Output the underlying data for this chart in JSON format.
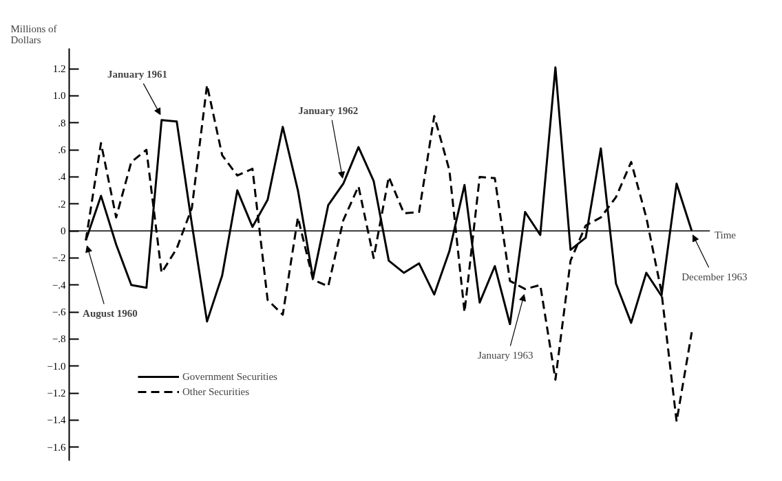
{
  "chart_data": {
    "type": "line",
    "ylabel": "Millions of Dollars",
    "xlabel": "Time",
    "categories": [
      null,
      null,
      null,
      null,
      null,
      null,
      null,
      null,
      null,
      null,
      null,
      null,
      null,
      null,
      null,
      null,
      null,
      null,
      null,
      null,
      null,
      null,
      null,
      null,
      null,
      null,
      null,
      null,
      null,
      null,
      null,
      null,
      null,
      null,
      null,
      null,
      null,
      null,
      null,
      null,
      null
    ],
    "series": [
      {
        "name": "Government Securities",
        "color": "#000000",
        "line_style": "solid",
        "values": [
          -0.07,
          0.26,
          -0.1,
          -0.4,
          -0.42,
          0.82,
          0.81,
          0.05,
          -0.67,
          -0.33,
          0.3,
          0.03,
          0.23,
          0.77,
          0.3,
          -0.35,
          0.19,
          0.35,
          0.62,
          0.37,
          -0.22,
          -0.31,
          -0.24,
          -0.47,
          -0.15,
          0.34,
          -0.53,
          -0.26,
          -0.69,
          0.14,
          -0.03,
          1.21,
          -0.14,
          -0.05,
          0.61,
          -0.39,
          -0.68,
          -0.31,
          -0.48,
          0.35,
          0.0
        ]
      },
      {
        "name": "Other Securities",
        "color": "#000000",
        "line_style": "dashed",
        "values": [
          -0.07,
          0.65,
          0.1,
          0.51,
          0.6,
          -0.31,
          -0.13,
          0.17,
          1.08,
          0.56,
          0.41,
          0.46,
          -0.51,
          -0.62,
          0.1,
          -0.36,
          -0.41,
          0.08,
          0.33,
          -0.2,
          0.4,
          0.13,
          0.14,
          0.85,
          0.45,
          -0.6,
          0.4,
          0.39,
          -0.37,
          -0.43,
          -0.4,
          -1.1,
          -0.22,
          0.04,
          0.1,
          0.25,
          0.51,
          0.1,
          -0.45,
          -1.41,
          -0.75
        ]
      }
    ],
    "ylim": [
      -1.7,
      1.35
    ],
    "yticks": [
      {
        "value": 1.2,
        "label": "1.2"
      },
      {
        "value": 1.0,
        "label": "1.0"
      },
      {
        "value": 0.8,
        "label": ".8"
      },
      {
        "value": 0.6,
        "label": ".6"
      },
      {
        "value": 0.4,
        "label": ".4"
      },
      {
        "value": 0.2,
        "label": ".2"
      },
      {
        "value": 0,
        "label": "0"
      },
      {
        "value": -0.2,
        "label": "−.2"
      },
      {
        "value": -0.4,
        "label": "−.4"
      },
      {
        "value": -0.6,
        "label": "−.6"
      },
      {
        "value": -0.8,
        "label": "−.8"
      },
      {
        "value": -1.0,
        "label": "−1.0"
      },
      {
        "value": -1.2,
        "label": "−1.2"
      },
      {
        "value": -1.4,
        "label": "−1.4"
      },
      {
        "value": -1.6,
        "label": "−1.6"
      }
    ],
    "tick_labels": "y",
    "grid": false,
    "legend": "bottom left",
    "marker": "none",
    "ref_lines": [
      {
        "axis": "y",
        "value": 0,
        "color": "#000000"
      }
    ],
    "annotations": [
      "August 1960",
      "January 1961",
      "January 1962",
      "January 1963",
      "December 1963"
    ]
  }
}
